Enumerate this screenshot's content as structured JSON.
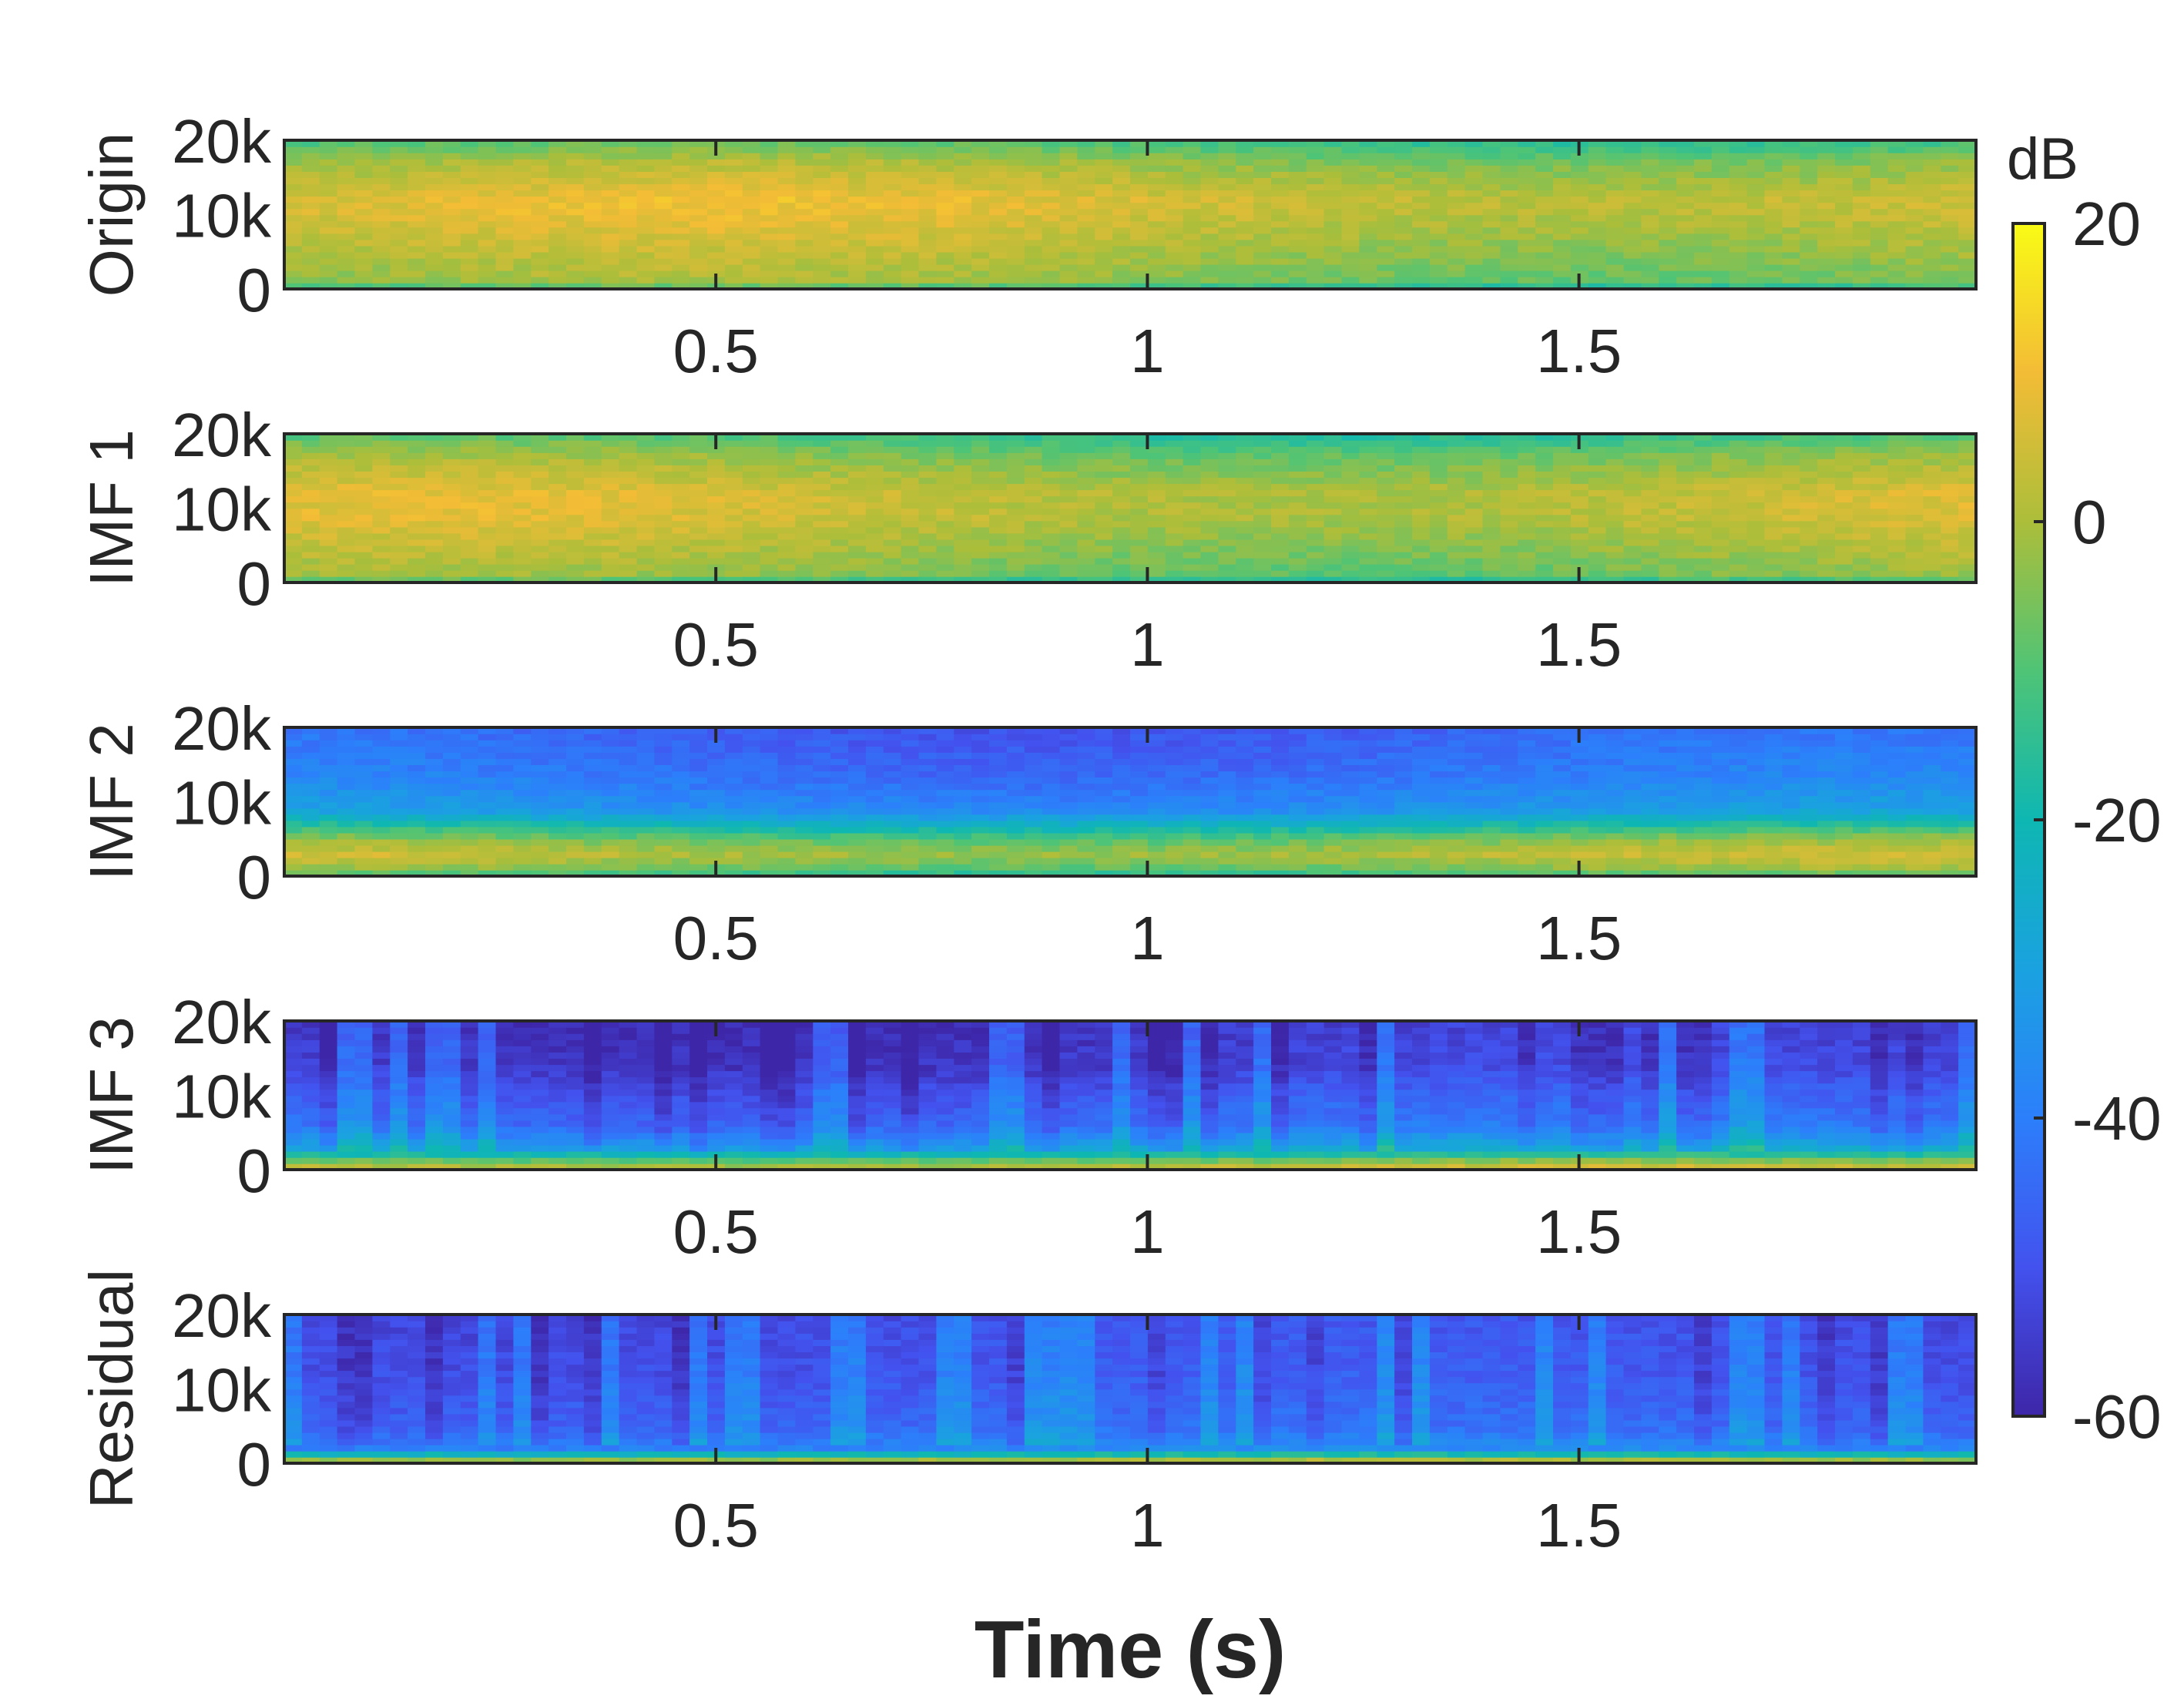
{
  "chart_data": {
    "type": "heatmap",
    "title": "",
    "xlabel": "Time (s)",
    "xlim": [
      0,
      1.96
    ],
    "x_ticks": [
      0.5,
      1,
      1.5
    ],
    "x_tick_labels": [
      "0.5",
      "1",
      "1.5"
    ],
    "ylim": [
      0,
      20000
    ],
    "y_ticks": [
      0,
      10000,
      20000
    ],
    "y_tick_labels": [
      "0",
      "10k",
      "20k"
    ],
    "panels": [
      {
        "name": "origin",
        "ylabel": "Origin",
        "profile": [
          [
            0,
            -16
          ],
          [
            0.05,
            -4
          ],
          [
            0.5,
            5
          ],
          [
            0.6,
            6
          ],
          [
            0.85,
            -2
          ],
          [
            1.0,
            -12
          ]
        ],
        "time_variation": 4,
        "bar_streaks": false
      },
      {
        "name": "imf1",
        "ylabel": "IMF 1",
        "profile": [
          [
            0,
            -16
          ],
          [
            0.05,
            -5
          ],
          [
            0.45,
            4
          ],
          [
            0.6,
            4
          ],
          [
            0.85,
            -4
          ],
          [
            1.0,
            -13
          ]
        ],
        "time_variation": 4,
        "bar_streaks": false
      },
      {
        "name": "imf2",
        "ylabel": "IMF 2",
        "profile": [
          [
            0,
            -15
          ],
          [
            0.04,
            -6
          ],
          [
            0.15,
            2
          ],
          [
            0.25,
            -6
          ],
          [
            0.45,
            -34
          ],
          [
            0.7,
            -42
          ],
          [
            1.0,
            -46
          ]
        ],
        "time_variation": 4,
        "bar_streaks": false
      },
      {
        "name": "imf3",
        "ylabel": "IMF 3",
        "profile": [
          [
            0,
            6
          ],
          [
            0.06,
            -6
          ],
          [
            0.15,
            -30
          ],
          [
            0.3,
            -43
          ],
          [
            0.5,
            -48
          ],
          [
            0.7,
            -54
          ],
          [
            1.0,
            -56
          ]
        ],
        "time_variation": 3,
        "bar_streaks": true
      },
      {
        "name": "residual",
        "ylabel": "Residual",
        "profile": [
          [
            0,
            8
          ],
          [
            0.04,
            -10
          ],
          [
            0.1,
            -38
          ],
          [
            0.25,
            -45
          ],
          [
            0.6,
            -49
          ],
          [
            1.0,
            -51
          ]
        ],
        "time_variation": 2,
        "bar_streaks": true
      }
    ],
    "colorbar": {
      "label": "dB",
      "range": [
        -60,
        20
      ],
      "ticks": [
        20,
        0,
        -20,
        -40,
        -60
      ],
      "tick_labels": [
        "20",
        "0",
        "-20",
        "-40",
        "-60"
      ],
      "colormap": "parula"
    }
  }
}
